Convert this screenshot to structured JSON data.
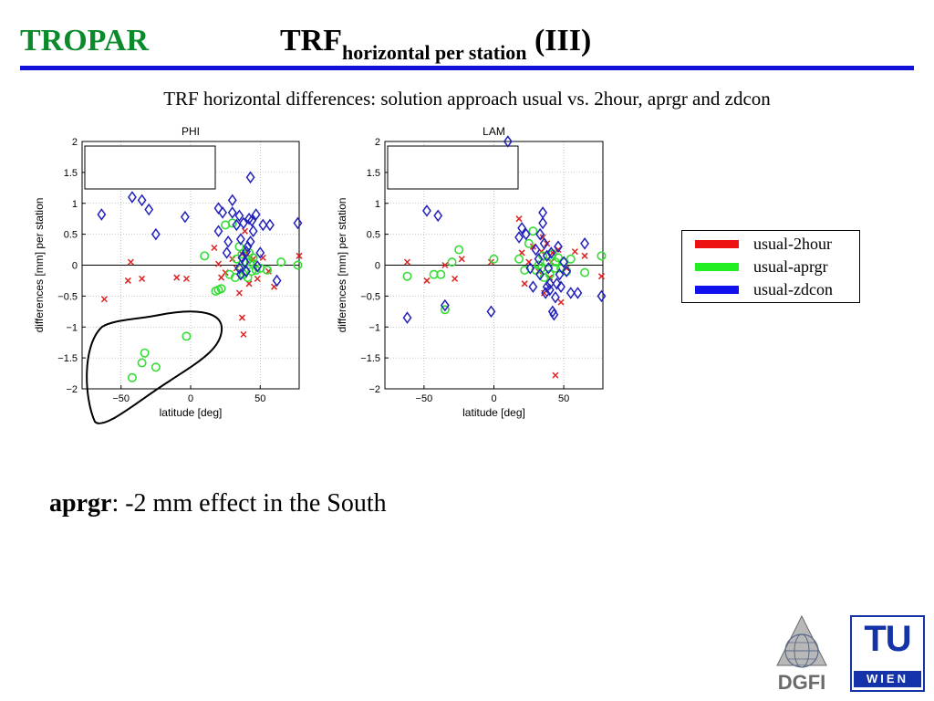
{
  "header": {
    "left_label": "TROPAR",
    "title_main": "TRF",
    "title_sub": "horizontal per station",
    "title_suffix": " (III)"
  },
  "subtitle": "TRF horizontal differences: solution approach usual vs. 2hour, aprgr and zdcon",
  "legend": [
    {
      "label": "usual-2hour",
      "color": "#ee1111"
    },
    {
      "label": "usual-aprgr",
      "color": "#22ee22"
    },
    {
      "label": "usual-zdcon",
      "color": "#1111ee"
    }
  ],
  "bottom": {
    "bold": "aprgr",
    "rest": ": -2 mm effect in the South"
  },
  "logos": {
    "dgfi": "DGFI",
    "tu": "TU",
    "wien": "WIEN"
  },
  "colors": {
    "title_green": "#0a8a2a",
    "rule_blue": "#1010d8",
    "x_red": "#dd2222",
    "o_green": "#33dd33",
    "d_blue": "#2222bb"
  },
  "chart_data": [
    {
      "type": "scatter",
      "title": "PHI",
      "xlabel": "latitude [deg]",
      "ylabel": "differences [mm] per station",
      "xlim": [
        -78,
        78
      ],
      "ylim": [
        -2,
        2
      ],
      "xticks": [
        -50,
        0,
        50
      ],
      "yticks": [
        2,
        1.5,
        1,
        0.5,
        0,
        -0.5,
        -1,
        -1.5,
        -2
      ],
      "grid": "dotted",
      "annotation": "hand-drawn ellipse around southern usual-aprgr points",
      "series": [
        {
          "name": "usual-2hour",
          "marker": "x",
          "points": [
            [
              -62,
              -0.55
            ],
            [
              -43,
              0.05
            ],
            [
              -45,
              -0.25
            ],
            [
              -35,
              -0.22
            ],
            [
              -3,
              -0.22
            ],
            [
              17,
              0.28
            ],
            [
              20,
              0.02
            ],
            [
              22,
              -0.2
            ],
            [
              25,
              -0.12
            ],
            [
              30,
              0.1
            ],
            [
              33,
              -0.05
            ],
            [
              35,
              -0.45
            ],
            [
              37,
              0.18
            ],
            [
              37,
              -0.85
            ],
            [
              38,
              -1.12
            ],
            [
              39,
              0.55
            ],
            [
              40,
              0.2
            ],
            [
              42,
              -0.3
            ],
            [
              44,
              0.07
            ],
            [
              45,
              0.1
            ],
            [
              48,
              -0.22
            ],
            [
              52,
              0.12
            ],
            [
              56,
              -0.1
            ],
            [
              60,
              -0.35
            ],
            [
              78,
              0.15
            ],
            [
              -10,
              -0.2
            ]
          ]
        },
        {
          "name": "usual-aprgr",
          "marker": "o",
          "points": [
            [
              -42,
              -1.82
            ],
            [
              -35,
              -1.58
            ],
            [
              -33,
              -1.42
            ],
            [
              -25,
              -1.65
            ],
            [
              -3,
              -1.15
            ],
            [
              10,
              0.15
            ],
            [
              18,
              -0.42
            ],
            [
              20,
              -0.4
            ],
            [
              22,
              -0.38
            ],
            [
              25,
              0.65
            ],
            [
              30,
              0.68
            ],
            [
              33,
              0.1
            ],
            [
              35,
              0.3
            ],
            [
              36,
              -0.05
            ],
            [
              37,
              0.18
            ],
            [
              38,
              -0.15
            ],
            [
              40,
              0.05
            ],
            [
              41,
              -0.2
            ],
            [
              42,
              0.2
            ],
            [
              43,
              0.05
            ],
            [
              44,
              -0.1
            ],
            [
              45,
              0.12
            ],
            [
              47,
              -0.08
            ],
            [
              50,
              -0.05
            ],
            [
              55,
              -0.08
            ],
            [
              65,
              0.05
            ],
            [
              77,
              0.0
            ],
            [
              28,
              -0.15
            ],
            [
              32,
              -0.2
            ],
            [
              39,
              -0.1
            ]
          ]
        },
        {
          "name": "usual-zdcon",
          "marker": "d",
          "points": [
            [
              -64,
              0.82
            ],
            [
              -42,
              1.1
            ],
            [
              -35,
              1.05
            ],
            [
              -30,
              0.9
            ],
            [
              -25,
              0.5
            ],
            [
              -4,
              0.78
            ],
            [
              20,
              0.55
            ],
            [
              20,
              0.92
            ],
            [
              23,
              0.85
            ],
            [
              26,
              0.2
            ],
            [
              27,
              0.38
            ],
            [
              30,
              1.05
            ],
            [
              30,
              0.85
            ],
            [
              33,
              0.65
            ],
            [
              35,
              0.8
            ],
            [
              36,
              0.42
            ],
            [
              37,
              0.12
            ],
            [
              38,
              0.68
            ],
            [
              39,
              0.05
            ],
            [
              40,
              -0.1
            ],
            [
              41,
              0.3
            ],
            [
              42,
              0.75
            ],
            [
              43,
              1.42
            ],
            [
              44,
              0.72
            ],
            [
              45,
              0.55
            ],
            [
              47,
              0.82
            ],
            [
              48,
              -0.02
            ],
            [
              50,
              0.2
            ],
            [
              52,
              0.65
            ],
            [
              57,
              0.65
            ],
            [
              62,
              -0.25
            ],
            [
              77,
              0.68
            ],
            [
              35,
              -0.05
            ],
            [
              36,
              -0.15
            ],
            [
              40,
              0.22
            ],
            [
              43,
              0.38
            ]
          ]
        }
      ]
    },
    {
      "type": "scatter",
      "title": "LAM",
      "xlabel": "latitude [deg]",
      "ylabel": "differences [mm] per station",
      "xlim": [
        -78,
        78
      ],
      "ylim": [
        -2,
        2
      ],
      "xticks": [
        -50,
        0,
        50
      ],
      "yticks": [
        2,
        1.5,
        1,
        0.5,
        0,
        -0.5,
        -1,
        -1.5,
        -2
      ],
      "grid": "dotted",
      "series": [
        {
          "name": "usual-2hour",
          "marker": "x",
          "points": [
            [
              -62,
              0.05
            ],
            [
              -48,
              -0.25
            ],
            [
              -35,
              0.0
            ],
            [
              -28,
              -0.22
            ],
            [
              -23,
              0.1
            ],
            [
              -2,
              0.05
            ],
            [
              20,
              0.2
            ],
            [
              22,
              -0.3
            ],
            [
              25,
              0.05
            ],
            [
              28,
              0.3
            ],
            [
              32,
              -0.1
            ],
            [
              35,
              0.45
            ],
            [
              36,
              -0.45
            ],
            [
              38,
              0.35
            ],
            [
              40,
              -0.2
            ],
            [
              42,
              0.2
            ],
            [
              44,
              -1.78
            ],
            [
              46,
              0.25
            ],
            [
              48,
              -0.6
            ],
            [
              52,
              -0.05
            ],
            [
              58,
              0.22
            ],
            [
              65,
              0.15
            ],
            [
              77,
              -0.18
            ],
            [
              34,
              0.22
            ],
            [
              41,
              0.05
            ],
            [
              18,
              0.75
            ]
          ]
        },
        {
          "name": "usual-aprgr",
          "marker": "o",
          "points": [
            [
              -62,
              -0.18
            ],
            [
              -43,
              -0.15
            ],
            [
              -38,
              -0.15
            ],
            [
              -35,
              -0.72
            ],
            [
              -30,
              0.05
            ],
            [
              -25,
              0.25
            ],
            [
              0,
              0.1
            ],
            [
              18,
              0.1
            ],
            [
              22,
              -0.08
            ],
            [
              25,
              0.35
            ],
            [
              28,
              0.55
            ],
            [
              30,
              -0.08
            ],
            [
              32,
              0.0
            ],
            [
              35,
              0.15
            ],
            [
              36,
              -0.2
            ],
            [
              38,
              0.05
            ],
            [
              40,
              -0.15
            ],
            [
              42,
              0.18
            ],
            [
              44,
              -0.05
            ],
            [
              46,
              0.12
            ],
            [
              48,
              -0.05
            ],
            [
              50,
              0.05
            ],
            [
              52,
              -0.1
            ],
            [
              55,
              0.1
            ],
            [
              65,
              -0.12
            ],
            [
              77,
              0.15
            ],
            [
              34,
              -0.05
            ],
            [
              44,
              0.05
            ]
          ]
        },
        {
          "name": "usual-zdcon",
          "marker": "d",
          "points": [
            [
              -62,
              -0.85
            ],
            [
              -48,
              0.88
            ],
            [
              -40,
              0.8
            ],
            [
              -35,
              -0.65
            ],
            [
              -2,
              -0.75
            ],
            [
              10,
              2.0
            ],
            [
              18,
              0.45
            ],
            [
              20,
              0.6
            ],
            [
              23,
              0.5
            ],
            [
              26,
              -0.05
            ],
            [
              28,
              -0.35
            ],
            [
              30,
              0.25
            ],
            [
              32,
              0.1
            ],
            [
              33,
              0.5
            ],
            [
              35,
              0.85
            ],
            [
              35,
              0.68
            ],
            [
              36,
              0.35
            ],
            [
              37,
              -0.45
            ],
            [
              38,
              0.15
            ],
            [
              39,
              -0.05
            ],
            [
              40,
              -0.3
            ],
            [
              41,
              0.2
            ],
            [
              42,
              -0.75
            ],
            [
              43,
              -0.8
            ],
            [
              44,
              -0.52
            ],
            [
              45,
              -0.3
            ],
            [
              46,
              0.3
            ],
            [
              47,
              -0.15
            ],
            [
              48,
              -0.35
            ],
            [
              50,
              0.05
            ],
            [
              52,
              -0.1
            ],
            [
              55,
              -0.45
            ],
            [
              60,
              -0.45
            ],
            [
              65,
              0.35
            ],
            [
              77,
              -0.5
            ],
            [
              33,
              -0.15
            ],
            [
              38,
              -0.35
            ],
            [
              40,
              -0.4
            ]
          ]
        }
      ]
    }
  ]
}
